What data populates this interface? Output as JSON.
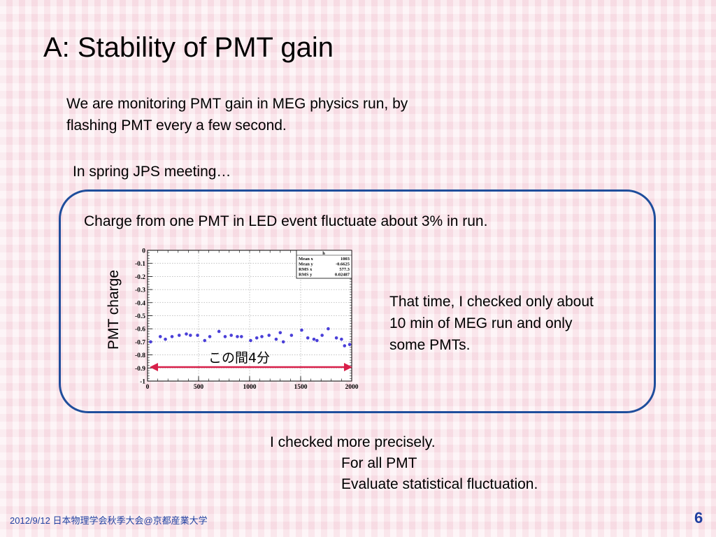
{
  "slide": {
    "title": "A: Stability of PMT gain",
    "intro": [
      "We are monitoring PMT gain in MEG physics run, by",
      "flashing PMT every a few second."
    ],
    "spring": "In spring JPS meeting…",
    "box_text": "Charge from one PMT in LED event fluctuate about 3% in run.",
    "side_text": [
      "That time, I checked only about",
      "10 min of MEG run and only",
      "some PMTs."
    ],
    "checked": "I checked more precisely.",
    "forall": "For all PMT",
    "evaluate": "Evaluate statistical fluctuation.",
    "footer": "2012/9/12 日本物理学会秋季大会@京都産業大学",
    "page_number": "6"
  },
  "colors": {
    "box_border": "#1f4e9c",
    "marker": "#4a3fd8",
    "arrow": "#d8204a",
    "footer": "#1f3fa0"
  },
  "chart_data": {
    "type": "scatter",
    "ylabel": "PMT charge",
    "xlim": [
      0,
      2000
    ],
    "ylim": [
      -1,
      0
    ],
    "x_ticks": [
      "0",
      "500",
      "1000",
      "1500",
      "2000"
    ],
    "y_ticks": [
      "0",
      "-0.1",
      "-0.2",
      "-0.3",
      "-0.4",
      "-0.5",
      "-0.6",
      "-0.7",
      "-0.8",
      "-0.9",
      "-1"
    ],
    "grid": true,
    "stats_box": {
      "header": "h",
      "rows": [
        {
          "label": "Mean x",
          "value": "1003"
        },
        {
          "label": "Mean y",
          "value": "-0.6625"
        },
        {
          "label": "RMS x",
          "value": "577.3"
        },
        {
          "label": "RMS y",
          "value": "0.02487"
        }
      ]
    },
    "annotation": "この間4分",
    "x": [
      30,
      125,
      175,
      240,
      310,
      380,
      420,
      490,
      560,
      610,
      700,
      760,
      820,
      880,
      920,
      1010,
      1070,
      1120,
      1190,
      1260,
      1300,
      1330,
      1410,
      1510,
      1570,
      1630,
      1660,
      1710,
      1770,
      1850,
      1900,
      1930,
      1980
    ],
    "y": [
      -0.7,
      -0.66,
      -0.68,
      -0.66,
      -0.65,
      -0.64,
      -0.65,
      -0.65,
      -0.69,
      -0.66,
      -0.62,
      -0.66,
      -0.65,
      -0.66,
      -0.66,
      -0.69,
      -0.67,
      -0.66,
      -0.65,
      -0.68,
      -0.63,
      -0.7,
      -0.65,
      -0.61,
      -0.67,
      -0.68,
      -0.69,
      -0.65,
      -0.6,
      -0.67,
      -0.68,
      -0.73,
      -0.72
    ]
  }
}
